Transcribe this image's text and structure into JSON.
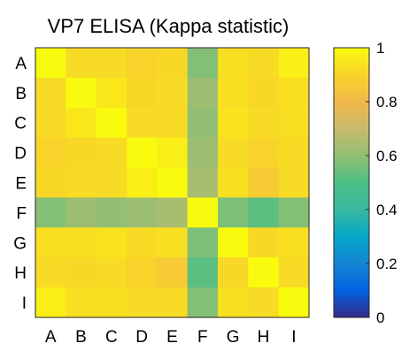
{
  "chart_data": {
    "type": "heatmap",
    "title": "VP7 ELISA (Kappa statistic)",
    "xlabel": "",
    "ylabel": "",
    "x_categories": [
      "A",
      "B",
      "C",
      "D",
      "E",
      "F",
      "G",
      "H",
      "I"
    ],
    "y_categories": [
      "A",
      "B",
      "C",
      "D",
      "E",
      "F",
      "G",
      "H",
      "I"
    ],
    "values": [
      [
        1.0,
        0.92,
        0.92,
        0.9,
        0.91,
        0.58,
        0.93,
        0.92,
        0.97
      ],
      [
        0.92,
        1.0,
        0.95,
        0.91,
        0.92,
        0.62,
        0.93,
        0.91,
        0.93
      ],
      [
        0.92,
        0.95,
        1.0,
        0.92,
        0.92,
        0.6,
        0.94,
        0.92,
        0.93
      ],
      [
        0.9,
        0.91,
        0.92,
        1.0,
        0.97,
        0.62,
        0.92,
        0.9,
        0.92
      ],
      [
        0.91,
        0.92,
        0.92,
        0.97,
        1.0,
        0.64,
        0.93,
        0.87,
        0.92
      ],
      [
        0.58,
        0.62,
        0.6,
        0.62,
        0.64,
        1.0,
        0.57,
        0.52,
        0.58
      ],
      [
        0.93,
        0.93,
        0.94,
        0.92,
        0.93,
        0.57,
        1.0,
        0.91,
        0.93
      ],
      [
        0.92,
        0.91,
        0.92,
        0.9,
        0.87,
        0.52,
        0.91,
        1.0,
        0.92
      ],
      [
        0.97,
        0.93,
        0.93,
        0.92,
        0.92,
        0.58,
        0.93,
        0.92,
        1.0
      ]
    ],
    "colorbar": {
      "range": [
        0,
        1
      ],
      "ticks": [
        "0",
        "0.2",
        "0.4",
        "0.6",
        "0.8",
        "1"
      ],
      "colormap": "parula"
    }
  }
}
